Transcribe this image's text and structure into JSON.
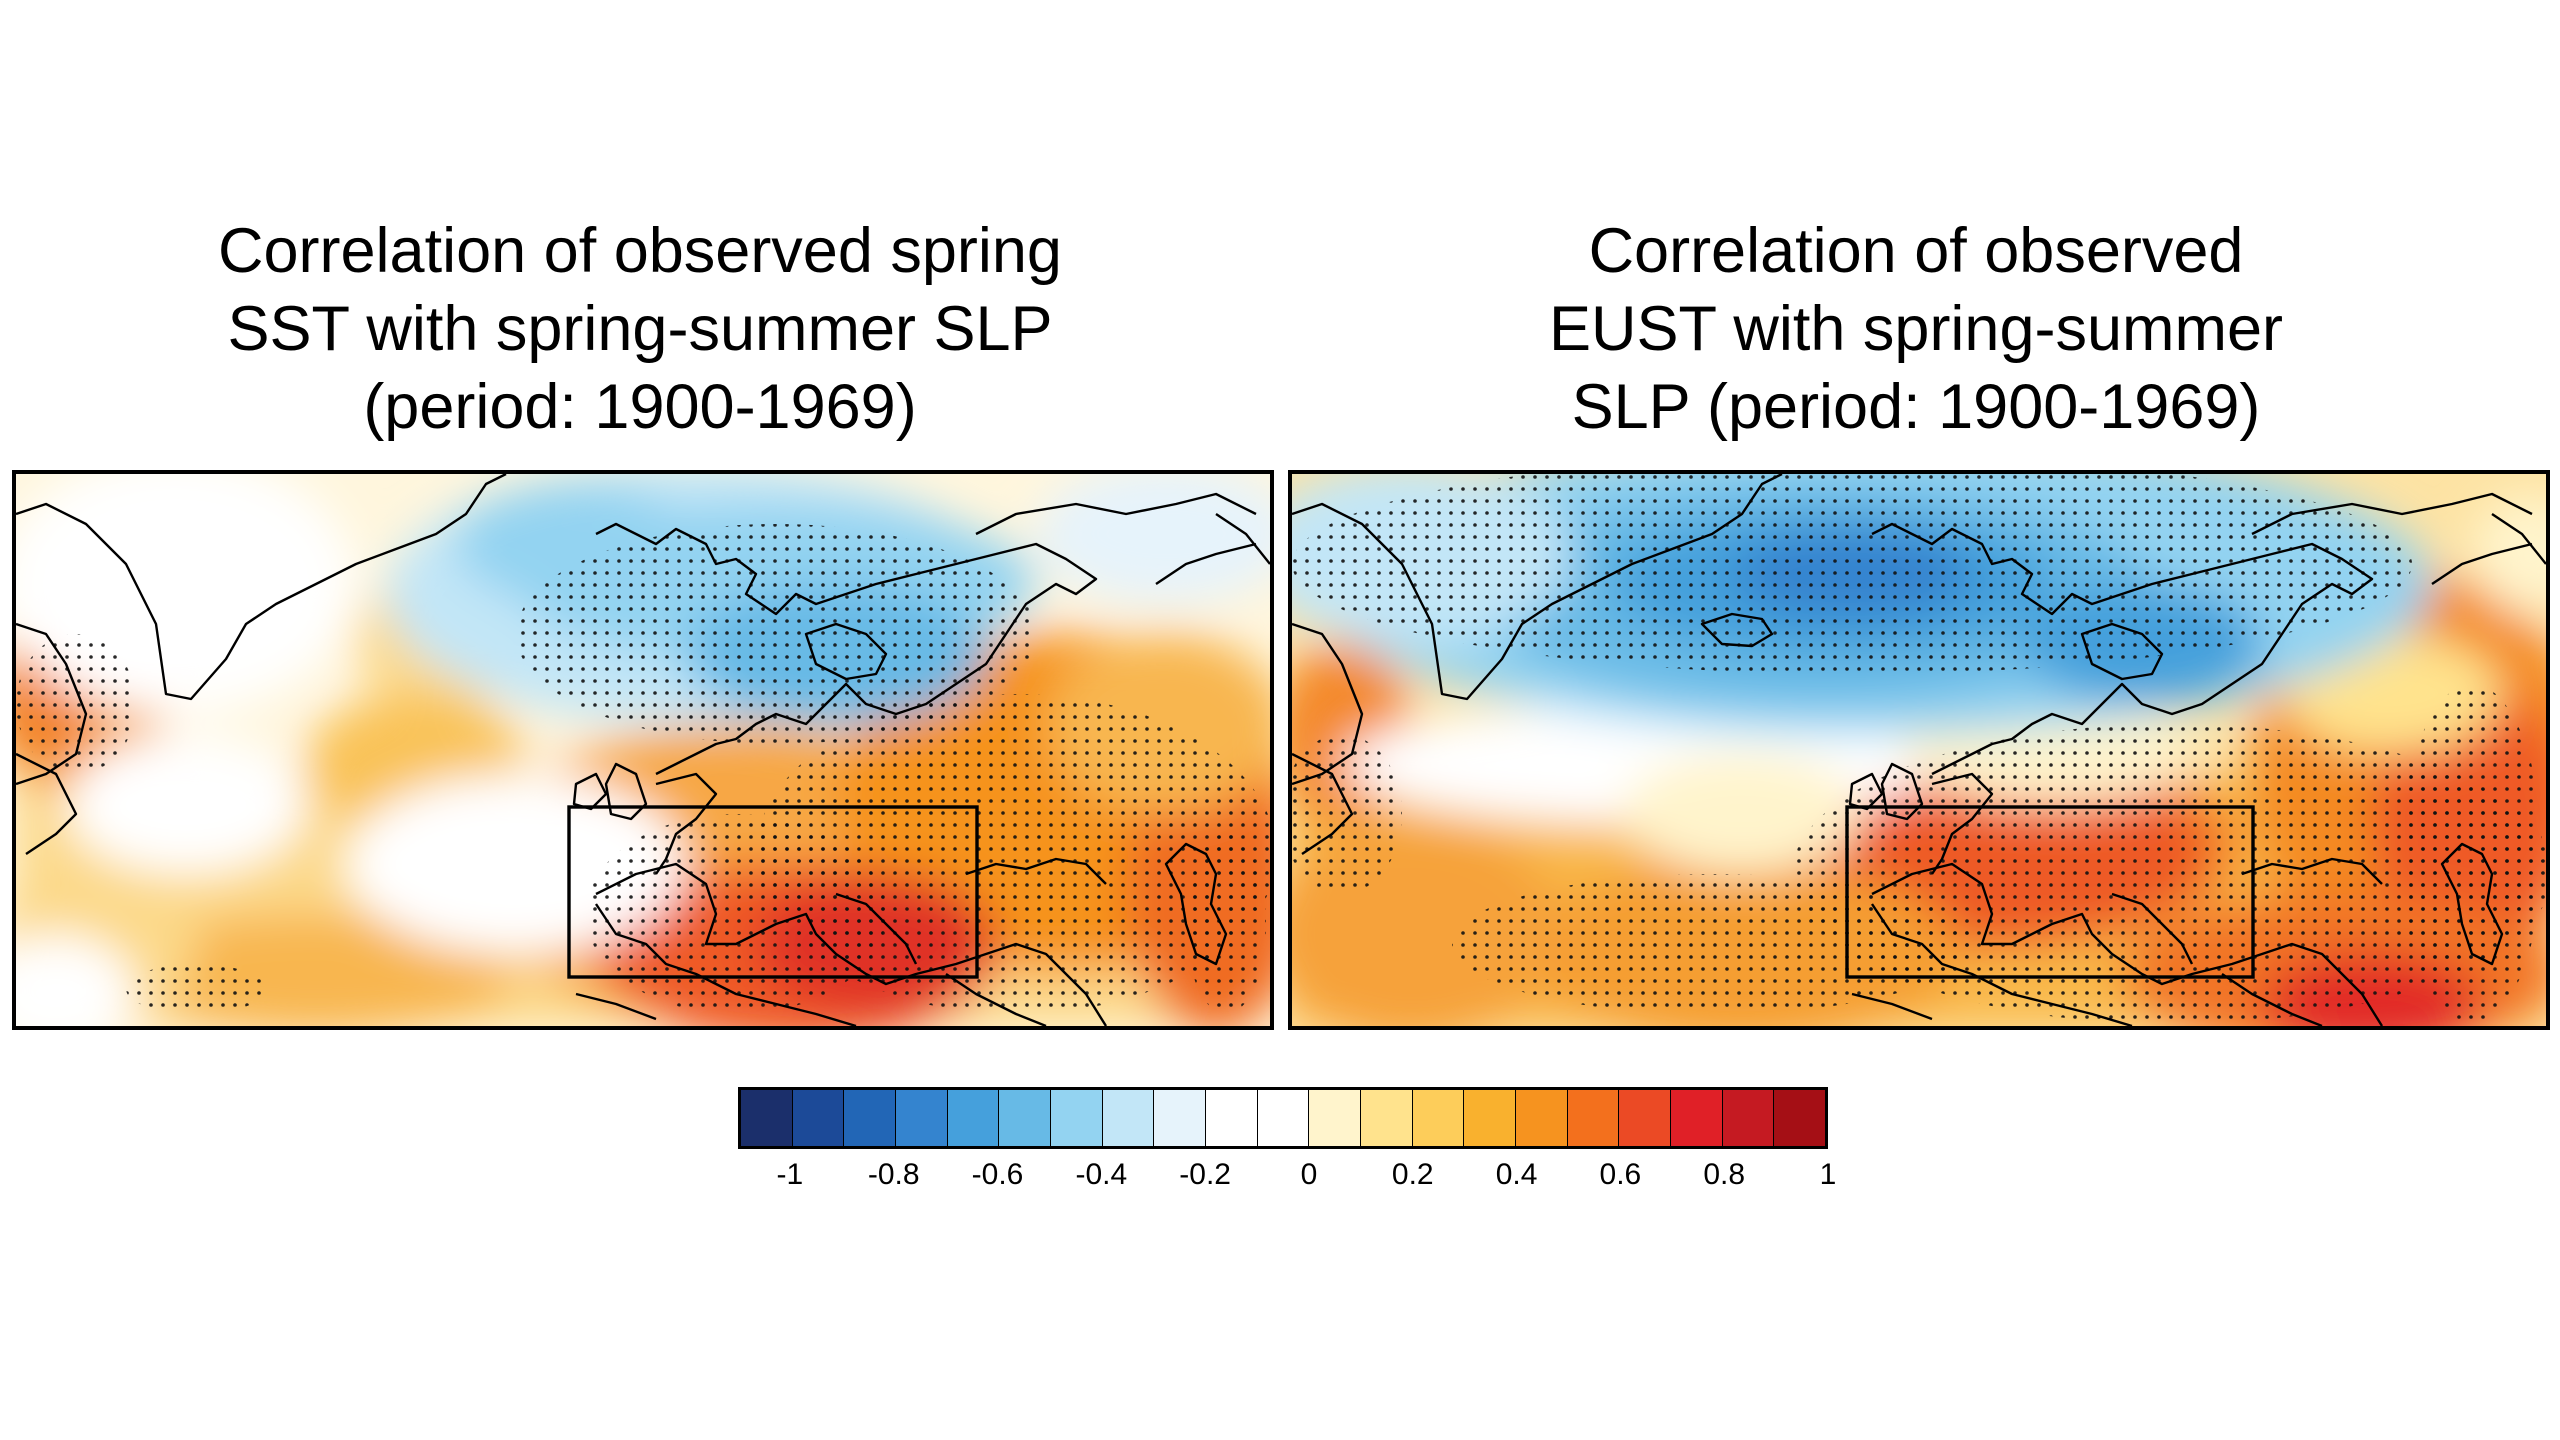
{
  "panels": [
    {
      "title_lines": [
        "Correlation of observed spring",
        "SST with spring-summer SLP",
        "(period: 1900-1969)"
      ]
    },
    {
      "title_lines": [
        "Correlation of observed",
        "EUST with spring-summer",
        "SLP (period: 1900-1969)"
      ]
    }
  ],
  "colorbar": {
    "colors": [
      "#1b2f6b",
      "#1c4a98",
      "#2266b6",
      "#3484cf",
      "#45a0dc",
      "#67bae6",
      "#93d3f1",
      "#c2e6f7",
      "#e6f3fb",
      "#ffffff",
      "#ffffff",
      "#fff4cc",
      "#ffe38d",
      "#fdcd5a",
      "#f9b12e",
      "#f6931f",
      "#f3701d",
      "#eb4a25",
      "#e02027",
      "#c51a22",
      "#a50f15"
    ],
    "tick_labels": [
      "-1",
      "-0.8",
      "-0.6",
      "-0.4",
      "-0.2",
      "0",
      "0.2",
      "0.4",
      "0.6",
      "0.8",
      "1"
    ]
  }
}
